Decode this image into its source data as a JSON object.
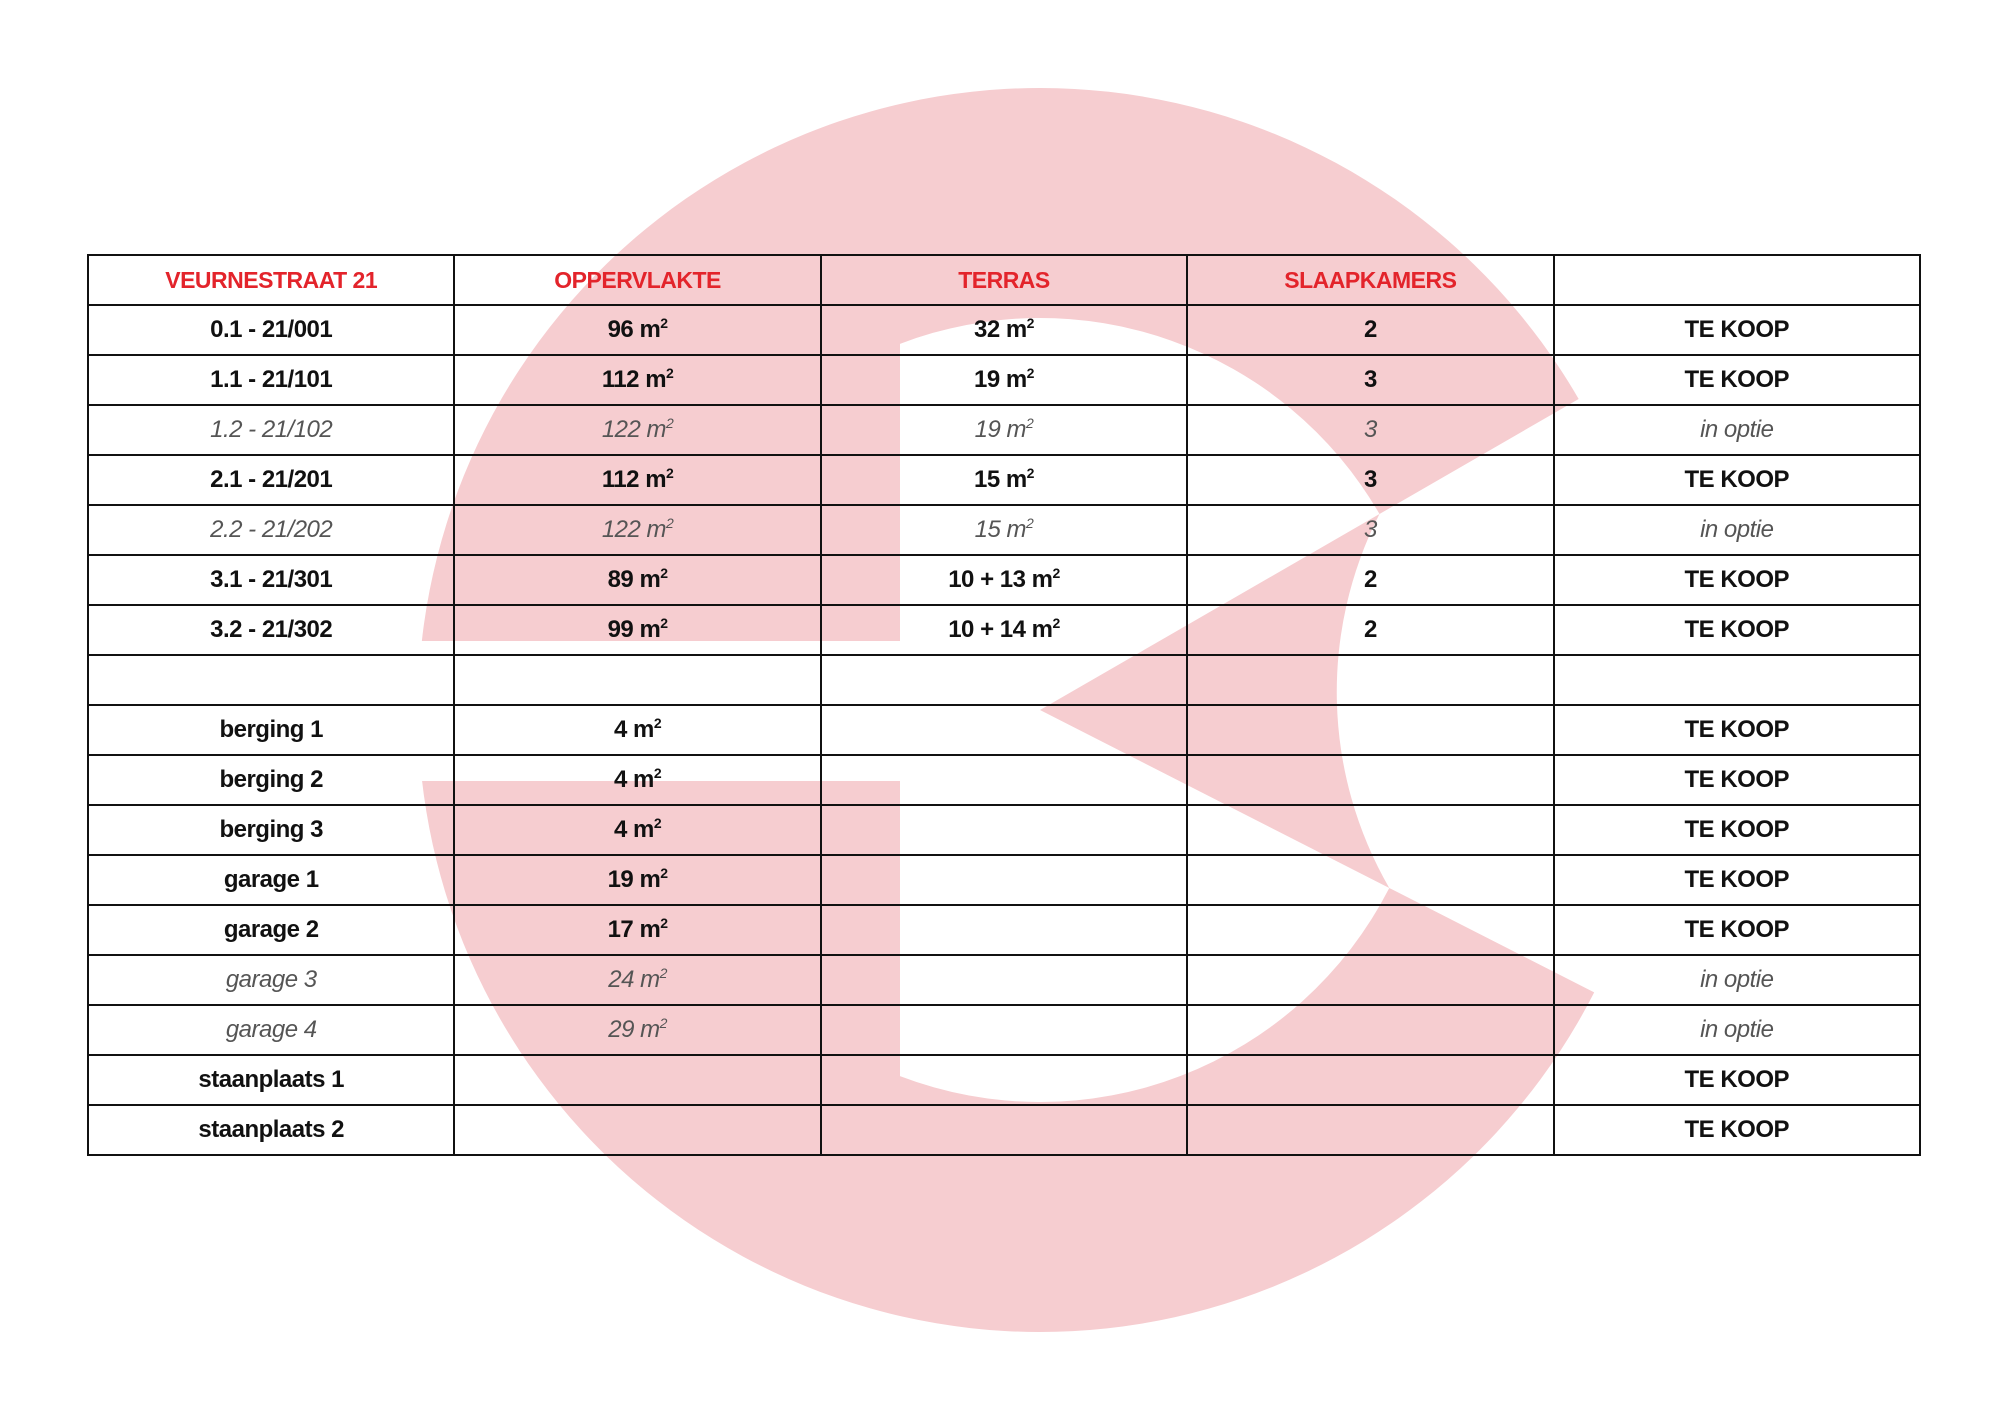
{
  "colors": {
    "header_text": "#e3242b",
    "watermark": "#f6cdd0",
    "border": "#111111"
  },
  "watermark": {
    "type": "logo",
    "shape": "letter-C"
  },
  "table": {
    "headers": [
      "VEURNESTRAAT 21",
      "OPPERVLAKTE",
      "TERRAS",
      "SLAAPKAMERS",
      ""
    ],
    "rows": [
      {
        "style": "bold",
        "unit": "0.1 - 21/001",
        "area": "96 m",
        "terrace": "32 m",
        "bedrooms": "2",
        "status": "TE KOOP"
      },
      {
        "style": "bold",
        "unit": "1.1 - 21/101",
        "area": "112 m",
        "terrace": "19 m",
        "bedrooms": "3",
        "status": "TE KOOP"
      },
      {
        "style": "opt",
        "unit": "1.2 - 21/102",
        "area": "122 m",
        "terrace": "19 m",
        "bedrooms": "3",
        "status": "in optie"
      },
      {
        "style": "bold",
        "unit": "2.1 - 21/201",
        "area": "112 m",
        "terrace": "15 m",
        "bedrooms": "3",
        "status": "TE KOOP"
      },
      {
        "style": "opt",
        "unit": "2.2 - 21/202",
        "area": "122 m",
        "terrace": "15 m",
        "bedrooms": "3",
        "status": "in optie"
      },
      {
        "style": "bold",
        "unit": "3.1 - 21/301",
        "area": "89 m",
        "terrace": "10 + 13 m",
        "bedrooms": "2",
        "status": "TE KOOP"
      },
      {
        "style": "bold",
        "unit": "3.2 - 21/302",
        "area": "99 m",
        "terrace": "10 + 14 m",
        "bedrooms": "2",
        "status": "TE KOOP"
      },
      {
        "style": "bold",
        "unit": "",
        "area": "",
        "terrace": "",
        "bedrooms": "",
        "status": ""
      },
      {
        "style": "bold",
        "unit": "berging 1",
        "area": "4 m",
        "terrace": "",
        "bedrooms": "",
        "status": "TE KOOP"
      },
      {
        "style": "bold",
        "unit": "berging 2",
        "area": "4 m",
        "terrace": "",
        "bedrooms": "",
        "status": "TE KOOP"
      },
      {
        "style": "bold",
        "unit": "berging 3",
        "area": "4 m",
        "terrace": "",
        "bedrooms": "",
        "status": "TE KOOP"
      },
      {
        "style": "bold",
        "unit": "garage 1",
        "area": "19 m",
        "terrace": "",
        "bedrooms": "",
        "status": "TE KOOP"
      },
      {
        "style": "bold",
        "unit": "garage 2",
        "area": "17 m",
        "terrace": "",
        "bedrooms": "",
        "status": "TE KOOP"
      },
      {
        "style": "opt",
        "unit": "garage 3",
        "area": "24 m",
        "terrace": "",
        "bedrooms": "",
        "status": "in optie"
      },
      {
        "style": "opt",
        "unit": "garage 4",
        "area": "29 m",
        "terrace": "",
        "bedrooms": "",
        "status": "in optie"
      },
      {
        "style": "bold",
        "unit": "staanplaats 1",
        "area": "",
        "terrace": "",
        "bedrooms": "",
        "status": "TE KOOP"
      },
      {
        "style": "bold",
        "unit": "staanplaats 2",
        "area": "",
        "terrace": "",
        "bedrooms": "",
        "status": "TE KOOP"
      }
    ]
  }
}
